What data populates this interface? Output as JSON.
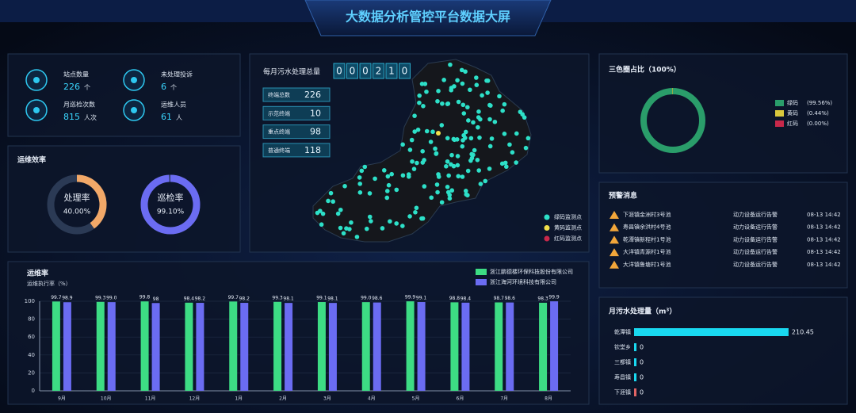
{
  "header": {
    "title": "大数据分析管控平台数据大屏"
  },
  "stats": [
    {
      "label": "站点数量",
      "value": 226,
      "unit": "个"
    },
    {
      "label": "未处理投诉",
      "value": 6,
      "unit": "个"
    },
    {
      "label": "月巡检次数",
      "value": 815,
      "unit": "人次"
    },
    {
      "label": "运维人员",
      "value": 61,
      "unit": "人"
    }
  ],
  "efficiency": {
    "title": "运维效率"
  },
  "map": {
    "title": "每月污水处理总量",
    "total_digits": [
      "0",
      "0",
      "0",
      "2",
      "1",
      "0"
    ],
    "terminals": [
      {
        "label": "终端总数",
        "value": 226
      },
      {
        "label": "示范终端",
        "value": 10
      },
      {
        "label": "重点终端",
        "value": 98
      },
      {
        "label": "普通终端",
        "value": 118
      }
    ],
    "legend": [
      "绿码监测点",
      "黄码监测点",
      "红码监测点"
    ],
    "legend_colors": [
      "#2de0c8",
      "#f2e04a",
      "#c8284a"
    ]
  },
  "warnings": {
    "title": "预警消息",
    "rows": [
      [
        "下涯镇金洲村3号池",
        "动力设备运行告警",
        "08-13 14:42"
      ],
      [
        "寿昌镇余洪村4号池",
        "动力设备运行告警",
        "08-13 14:42"
      ],
      [
        "乾潭镇新程村1号池",
        "动力设备运行告警",
        "08-13 14:42"
      ],
      [
        "大洋镇青源村1号池",
        "动力设备运行告警",
        "08-13 14:42"
      ],
      [
        "大洋镇鲁塘村1号池",
        "动力设备运行告警",
        "08-13 14:42"
      ]
    ]
  },
  "chart_data": [
    {
      "type": "gauge",
      "title": "处理率",
      "values": [
        40
      ],
      "value_labels": [
        "40.00%"
      ],
      "ylim": [
        0,
        100
      ],
      "color": "#f2a868"
    },
    {
      "type": "gauge",
      "title": "巡检率",
      "values": [
        99.1
      ],
      "value_labels": [
        "99.10%"
      ],
      "ylim": [
        0,
        100
      ],
      "color": "#6b6cf2"
    },
    {
      "type": "pie",
      "title": "三色圈占比（100%）",
      "categories": [
        "绿码",
        "黄码",
        "红码"
      ],
      "values": [
        99.56,
        0.44,
        0
      ],
      "value_labels": [
        "(99.56%)",
        "(0.44%)",
        "(0.00%)"
      ],
      "colors": [
        "#2a9d6a",
        "#d9c83c",
        "#c8284a"
      ]
    },
    {
      "type": "bar",
      "title": "运维率",
      "y_label": "运维执行率（%）",
      "categories": [
        "9月",
        "10月",
        "11月",
        "12月",
        "1月",
        "2月",
        "3月",
        "4月",
        "5月",
        "6月",
        "7月",
        "8月"
      ],
      "series": [
        {
          "name": "浙江鹏德楼环保科技股份有限公司",
          "color": "#3ddc84",
          "values": [
            99.7,
            99.3,
            99.8,
            98.4,
            99.7,
            99.3,
            99.1,
            99.0,
            99.9,
            98.8,
            98.7,
            98.3
          ],
          "value_labels": [
            "99.7",
            "99.3",
            "99.8",
            "98.4",
            "99.7",
            "99.3",
            "99.1",
            "99.0",
            "99.9",
            "98.8",
            "98.7",
            "98.3"
          ]
        },
        {
          "name": "浙江海河环境科技有限公司",
          "color": "#6b6cf2",
          "values": [
            98.9,
            99.0,
            98,
            98.2,
            98.2,
            98.1,
            98.1,
            98.6,
            99.1,
            98.4,
            98.6,
            99.9
          ],
          "value_labels": [
            "98.9",
            "99.0",
            "98",
            "98.2",
            "98.2",
            "98.1",
            "98.1",
            "98.6",
            "99.1",
            "98.4",
            "98.6",
            "99.9"
          ]
        }
      ],
      "ylim": [
        0,
        100
      ],
      "yticks": [
        0,
        20,
        40,
        60,
        80,
        100
      ],
      "grid": true
    },
    {
      "type": "hbar",
      "title": "月污水处理量（m³）",
      "categories": [
        "乾潭镇",
        "钦堂乡",
        "三都镇",
        "寿昌镇",
        "下涯镇"
      ],
      "values": [
        210.45,
        0,
        0,
        0,
        0
      ],
      "colors": [
        "#19d8f0",
        "#19d8f0",
        "#19d8f0",
        "#19d8f0",
        "#e06464"
      ],
      "xlim": [
        0,
        230
      ]
    }
  ]
}
